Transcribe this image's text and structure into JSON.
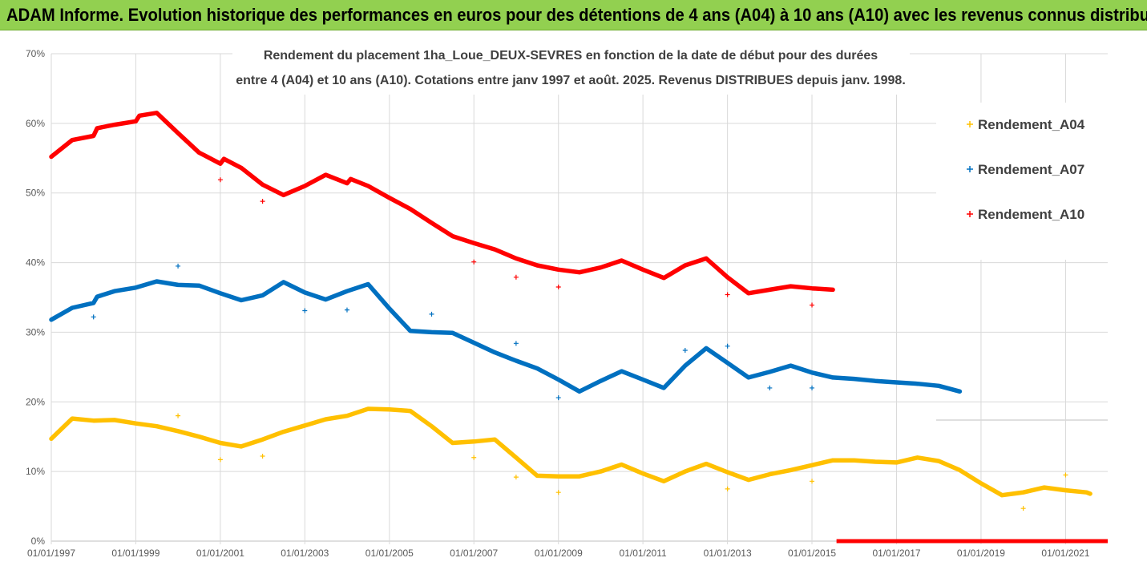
{
  "header": {
    "title": "ADAM Informe. Evolution historique des performances en euros pour des détentions de 4 ans (A04) à 10 ans (A10) avec les revenus connus distribués",
    "background": "#92d050"
  },
  "chart_data": {
    "type": "scatter",
    "title_line1": "Rendement du placement 1ha_Loue_DEUX-SEVRES en fonction de la date de début pour des durées",
    "title_line2": "entre 4 (A04) et 10 ans (A10). Cotations entre janv 1997 et août. 2025. Revenus DISTRIBUES depuis janv. 1998.",
    "xlabel": "",
    "ylabel": "",
    "ylim": [
      0,
      70
    ],
    "y_ticks": [
      "0%",
      "10%",
      "20%",
      "30%",
      "40%",
      "50%",
      "60%",
      "70%"
    ],
    "x_ticks": [
      "01/01/1997",
      "01/01/1999",
      "01/01/2001",
      "01/01/2003",
      "01/01/2005",
      "01/01/2007",
      "01/01/2009",
      "01/01/2011",
      "01/01/2013",
      "01/01/2015",
      "01/01/2017",
      "01/01/2019",
      "01/01/2021"
    ],
    "xlim": [
      "1997-01-01",
      "2021-12-31"
    ],
    "grid": true,
    "legend_position": "right",
    "series": [
      {
        "name": "Rendement_A04",
        "color": "#ffc000",
        "line": [
          [
            "1997-01-01",
            14.7
          ],
          [
            "1997-07-01",
            17.6
          ],
          [
            "1998-01-01",
            17.3
          ],
          [
            "1998-07-01",
            17.4
          ],
          [
            "1999-01-01",
            16.9
          ],
          [
            "1999-07-01",
            16.5
          ],
          [
            "2000-01-01",
            15.8
          ],
          [
            "2000-07-01",
            15.0
          ],
          [
            "2001-01-01",
            14.1
          ],
          [
            "2001-07-01",
            13.6
          ],
          [
            "2002-01-01",
            14.6
          ],
          [
            "2002-07-01",
            15.7
          ],
          [
            "2003-01-01",
            16.6
          ],
          [
            "2003-07-01",
            17.5
          ],
          [
            "2004-01-01",
            18.0
          ],
          [
            "2004-07-01",
            19.0
          ],
          [
            "2005-01-01",
            18.9
          ],
          [
            "2005-07-01",
            18.7
          ],
          [
            "2006-01-01",
            16.5
          ],
          [
            "2006-07-01",
            14.1
          ],
          [
            "2007-01-01",
            14.3
          ],
          [
            "2007-07-01",
            14.6
          ],
          [
            "2008-01-01",
            12.0
          ],
          [
            "2008-07-01",
            9.4
          ],
          [
            "2009-01-01",
            9.3
          ],
          [
            "2009-07-01",
            9.3
          ],
          [
            "2010-01-01",
            10.0
          ],
          [
            "2010-07-01",
            11.0
          ],
          [
            "2011-01-01",
            9.7
          ],
          [
            "2011-07-01",
            8.6
          ],
          [
            "2012-01-01",
            10.0
          ],
          [
            "2012-07-01",
            11.1
          ],
          [
            "2013-01-01",
            9.9
          ],
          [
            "2013-07-01",
            8.8
          ],
          [
            "2014-01-01",
            9.6
          ],
          [
            "2014-07-01",
            10.2
          ],
          [
            "2015-01-01",
            10.9
          ],
          [
            "2015-07-01",
            11.6
          ],
          [
            "2016-01-01",
            11.6
          ],
          [
            "2016-07-01",
            11.4
          ],
          [
            "2017-01-01",
            11.3
          ],
          [
            "2017-07-01",
            12.0
          ],
          [
            "2018-01-01",
            11.5
          ],
          [
            "2018-07-01",
            10.2
          ],
          [
            "2019-01-01",
            8.3
          ],
          [
            "2019-07-01",
            6.6
          ],
          [
            "2020-01-01",
            7.0
          ],
          [
            "2020-07-01",
            7.7
          ],
          [
            "2021-01-01",
            7.3
          ],
          [
            "2021-07-01",
            7.0
          ],
          [
            "2021-08-01",
            6.8
          ]
        ],
        "points": [
          [
            "2000-01-01",
            18.0
          ],
          [
            "2001-01-01",
            11.7
          ],
          [
            "2002-01-01",
            12.2
          ],
          [
            "2007-01-01",
            12.0
          ],
          [
            "2008-01-01",
            9.2
          ],
          [
            "2009-01-01",
            7.0
          ],
          [
            "2013-01-01",
            7.5
          ],
          [
            "2015-01-01",
            8.6
          ],
          [
            "2020-01-01",
            4.7
          ],
          [
            "2021-01-01",
            9.5
          ]
        ]
      },
      {
        "name": "Rendement_A07",
        "color": "#0070c0",
        "line": [
          [
            "1997-01-01",
            31.8
          ],
          [
            "1997-07-01",
            33.5
          ],
          [
            "1998-01-01",
            34.2
          ],
          [
            "1998-02-01",
            35.1
          ],
          [
            "1998-07-01",
            35.9
          ],
          [
            "1999-01-01",
            36.4
          ],
          [
            "1999-07-01",
            37.3
          ],
          [
            "2000-01-01",
            36.8
          ],
          [
            "2000-07-01",
            36.7
          ],
          [
            "2001-01-01",
            35.6
          ],
          [
            "2001-07-01",
            34.6
          ],
          [
            "2002-01-01",
            35.3
          ],
          [
            "2002-07-01",
            37.2
          ],
          [
            "2003-01-01",
            35.7
          ],
          [
            "2003-07-01",
            34.7
          ],
          [
            "2004-01-01",
            35.9
          ],
          [
            "2004-07-01",
            36.9
          ],
          [
            "2005-01-01",
            33.4
          ],
          [
            "2005-07-01",
            30.2
          ],
          [
            "2006-01-01",
            30.0
          ],
          [
            "2006-07-01",
            29.9
          ],
          [
            "2007-01-01",
            28.5
          ],
          [
            "2007-07-01",
            27.1
          ],
          [
            "2008-01-01",
            25.9
          ],
          [
            "2008-07-01",
            24.8
          ],
          [
            "2009-01-01",
            23.2
          ],
          [
            "2009-07-01",
            21.5
          ],
          [
            "2010-01-01",
            23.0
          ],
          [
            "2010-07-01",
            24.4
          ],
          [
            "2011-01-01",
            23.2
          ],
          [
            "2011-07-01",
            22.0
          ],
          [
            "2012-01-01",
            25.2
          ],
          [
            "2012-07-01",
            27.7
          ],
          [
            "2013-01-01",
            25.6
          ],
          [
            "2013-07-01",
            23.5
          ],
          [
            "2014-01-01",
            24.3
          ],
          [
            "2014-07-01",
            25.2
          ],
          [
            "2015-01-01",
            24.2
          ],
          [
            "2015-07-01",
            23.5
          ],
          [
            "2016-01-01",
            23.3
          ],
          [
            "2016-07-01",
            23.0
          ],
          [
            "2017-01-01",
            22.8
          ],
          [
            "2017-07-01",
            22.6
          ],
          [
            "2018-01-01",
            22.3
          ],
          [
            "2018-07-01",
            21.5
          ]
        ],
        "points": [
          [
            "1998-01-01",
            32.2
          ],
          [
            "2000-01-01",
            39.5
          ],
          [
            "2003-01-01",
            33.1
          ],
          [
            "2004-01-01",
            33.2
          ],
          [
            "2006-01-01",
            32.6
          ],
          [
            "2008-01-01",
            28.4
          ],
          [
            "2009-01-01",
            20.6
          ],
          [
            "2012-01-01",
            27.4
          ],
          [
            "2013-01-01",
            28.0
          ],
          [
            "2014-01-01",
            22.0
          ],
          [
            "2015-01-01",
            22.0
          ]
        ]
      },
      {
        "name": "Rendement_A10",
        "color": "#ff0000",
        "line": [
          [
            "1997-01-01",
            55.2
          ],
          [
            "1997-07-01",
            57.6
          ],
          [
            "1998-01-01",
            58.2
          ],
          [
            "1998-02-01",
            59.3
          ],
          [
            "1998-07-01",
            59.8
          ],
          [
            "1999-01-01",
            60.3
          ],
          [
            "1999-02-01",
            61.1
          ],
          [
            "1999-07-01",
            61.5
          ],
          [
            "2000-01-01",
            58.6
          ],
          [
            "2000-07-01",
            55.8
          ],
          [
            "2001-01-01",
            54.2
          ],
          [
            "2001-02-01",
            54.9
          ],
          [
            "2001-07-01",
            53.6
          ],
          [
            "2002-01-01",
            51.2
          ],
          [
            "2002-07-01",
            49.7
          ],
          [
            "2003-01-01",
            51.0
          ],
          [
            "2003-07-01",
            52.6
          ],
          [
            "2004-01-01",
            51.4
          ],
          [
            "2004-02-01",
            52.0
          ],
          [
            "2004-07-01",
            51.0
          ],
          [
            "2005-01-01",
            49.3
          ],
          [
            "2005-07-01",
            47.7
          ],
          [
            "2006-01-01",
            45.7
          ],
          [
            "2006-07-01",
            43.8
          ],
          [
            "2007-01-01",
            42.8
          ],
          [
            "2007-07-01",
            41.9
          ],
          [
            "2008-01-01",
            40.6
          ],
          [
            "2008-07-01",
            39.6
          ],
          [
            "2009-01-01",
            39.0
          ],
          [
            "2009-07-01",
            38.6
          ],
          [
            "2010-01-01",
            39.3
          ],
          [
            "2010-07-01",
            40.3
          ],
          [
            "2011-01-01",
            39.0
          ],
          [
            "2011-07-01",
            37.8
          ],
          [
            "2012-01-01",
            39.6
          ],
          [
            "2012-07-01",
            40.6
          ],
          [
            "2013-01-01",
            37.9
          ],
          [
            "2013-07-01",
            35.6
          ],
          [
            "2014-01-01",
            36.1
          ],
          [
            "2014-07-01",
            36.6
          ],
          [
            "2015-01-01",
            36.3
          ],
          [
            "2015-07-01",
            36.1
          ]
        ],
        "points": [
          [
            "2001-01-01",
            51.9
          ],
          [
            "2002-01-01",
            48.8
          ],
          [
            "2007-01-01",
            40.1
          ],
          [
            "2008-01-01",
            37.9
          ],
          [
            "2009-01-01",
            36.5
          ],
          [
            "2013-01-01",
            35.4
          ],
          [
            "2015-01-01",
            33.9
          ]
        ],
        "zero_segment": [
          [
            "2015-08-01",
            0
          ],
          [
            "2021-12-31",
            0
          ]
        ]
      }
    ]
  }
}
